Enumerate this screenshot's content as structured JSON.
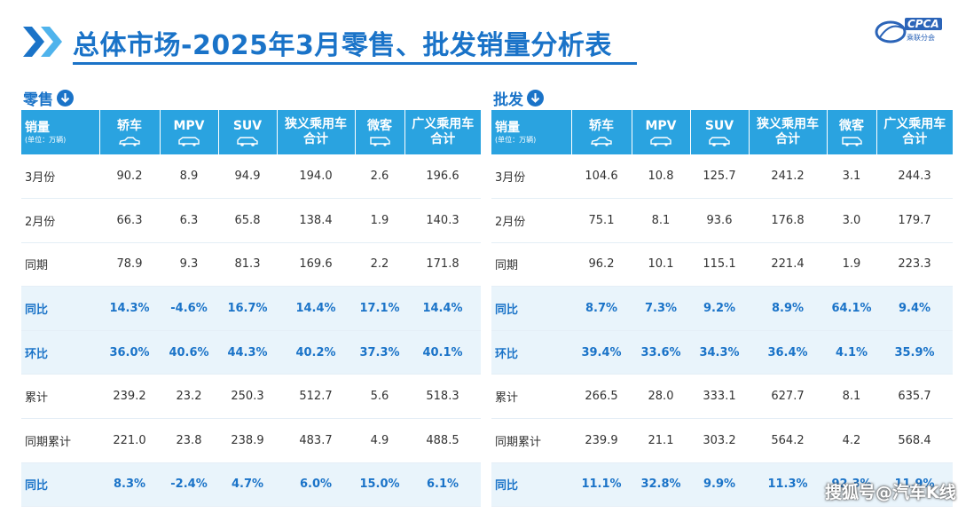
{
  "header": {
    "title": "总体市场-2025年3月零售、批发销量分析表",
    "logo_text": "CPCA",
    "logo_sub": "乘联分会"
  },
  "colors": {
    "accent": "#1a73c8",
    "header_bg": "#2aa3e0",
    "highlight_row_bg": "#e9f4fb"
  },
  "columns": [
    {
      "label": "轿车",
      "icon": "sedan-icon"
    },
    {
      "label": "MPV",
      "icon": "mpv-icon"
    },
    {
      "label": "SUV",
      "icon": "suv-icon"
    },
    {
      "label": "狭义乘用车合计",
      "icon": ""
    },
    {
      "label": "微客",
      "icon": "minivan-icon"
    },
    {
      "label": "广义乘用车合计",
      "icon": ""
    }
  ],
  "retail": {
    "label": "零售",
    "header_first": "销量",
    "header_unit": "(单位：万辆)",
    "rows": [
      {
        "label": "3月份",
        "values": [
          "90.2",
          "8.9",
          "94.9",
          "194.0",
          "2.6",
          "196.6"
        ],
        "highlight": false
      },
      {
        "label": "2月份",
        "values": [
          "66.3",
          "6.3",
          "65.8",
          "138.4",
          "1.9",
          "140.3"
        ],
        "highlight": false
      },
      {
        "label": "同期",
        "values": [
          "78.9",
          "9.3",
          "81.3",
          "169.6",
          "2.2",
          "171.8"
        ],
        "highlight": false
      },
      {
        "label": "同比",
        "values": [
          "14.3%",
          "-4.6%",
          "16.7%",
          "14.4%",
          "17.1%",
          "14.4%"
        ],
        "highlight": true
      },
      {
        "label": "环比",
        "values": [
          "36.0%",
          "40.6%",
          "44.3%",
          "40.2%",
          "37.3%",
          "40.1%"
        ],
        "highlight": true
      },
      {
        "label": "累计",
        "values": [
          "239.2",
          "23.2",
          "250.3",
          "512.7",
          "5.6",
          "518.3"
        ],
        "highlight": false
      },
      {
        "label": "同期累计",
        "values": [
          "221.0",
          "23.8",
          "238.9",
          "483.7",
          "4.9",
          "488.5"
        ],
        "highlight": false
      },
      {
        "label": "同比",
        "values": [
          "8.3%",
          "-2.4%",
          "4.7%",
          "6.0%",
          "15.0%",
          "6.1%"
        ],
        "highlight": true
      }
    ]
  },
  "wholesale": {
    "label": "批发",
    "header_first": "销量",
    "header_unit": "(单位：万辆)",
    "rows": [
      {
        "label": "3月份",
        "values": [
          "104.6",
          "10.8",
          "125.7",
          "241.2",
          "3.1",
          "244.3"
        ],
        "highlight": false
      },
      {
        "label": "2月份",
        "values": [
          "75.1",
          "8.1",
          "93.6",
          "176.8",
          "3.0",
          "179.7"
        ],
        "highlight": false
      },
      {
        "label": "同期",
        "values": [
          "96.2",
          "10.1",
          "115.1",
          "221.4",
          "1.9",
          "223.3"
        ],
        "highlight": false
      },
      {
        "label": "同比",
        "values": [
          "8.7%",
          "7.3%",
          "9.2%",
          "8.9%",
          "64.1%",
          "9.4%"
        ],
        "highlight": true
      },
      {
        "label": "环比",
        "values": [
          "39.4%",
          "33.6%",
          "34.3%",
          "36.4%",
          "4.1%",
          "35.9%"
        ],
        "highlight": true
      },
      {
        "label": "累计",
        "values": [
          "266.5",
          "28.0",
          "333.1",
          "627.7",
          "8.1",
          "635.7"
        ],
        "highlight": false
      },
      {
        "label": "同期累计",
        "values": [
          "239.9",
          "21.1",
          "303.2",
          "564.2",
          "4.2",
          "568.4"
        ],
        "highlight": false
      },
      {
        "label": "同比",
        "values": [
          "11.1%",
          "32.8%",
          "9.9%",
          "11.3%",
          "92.3%",
          "11.9%"
        ],
        "highlight": true
      }
    ]
  },
  "watermark": "搜狐号@汽车K线"
}
